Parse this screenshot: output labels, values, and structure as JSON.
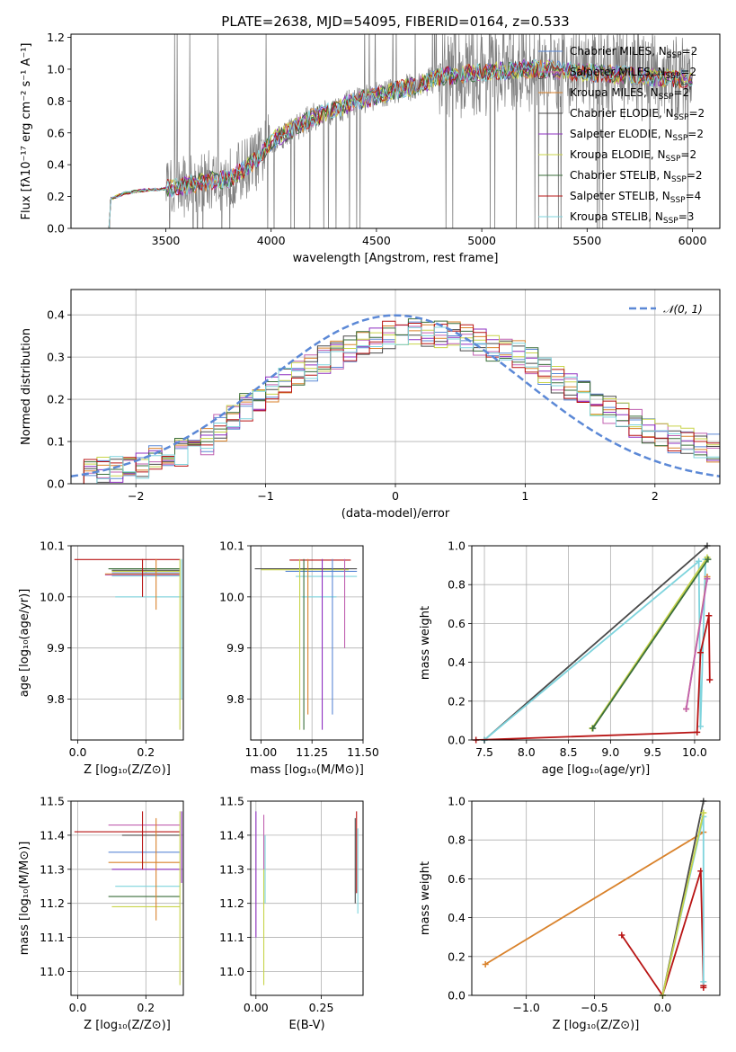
{
  "figure": {
    "title": "PLATE=2638, MJD=54095, FIBERID=0164, z=0.533"
  },
  "colors": {
    "Chabrier MILES": "#5b88d6",
    "Salpeter MILES": "#c060b0",
    "Kroupa MILES": "#d9822b",
    "Chabrier ELODIE": "#4a4a4a",
    "Salpeter ELODIE": "#8e2fc0",
    "Kroupa ELODIE": "#c8d44a",
    "Chabrier STELIB": "#3a6e3a",
    "Salpeter STELIB": "#b81414",
    "Kroupa STELIB": "#7fd4dd",
    "data": "#808080",
    "normal": "#5b88d6",
    "pink": "#e88aa0"
  },
  "chart_data": [
    {
      "id": "spectrum",
      "type": "line",
      "title": "PLATE=2638, MJD=54095, FIBERID=0164, z=0.533",
      "xlabel": "wavelength [Angstrom, rest frame]",
      "ylabel": "Flux [fλ10⁻¹⁷ erg cm⁻² s⁻¹ A⁻¹]",
      "xlim": [
        3050,
        6130
      ],
      "ylim": [
        0,
        1.22
      ],
      "xticks": [
        3500,
        4000,
        4500,
        5000,
        5500,
        6000
      ],
      "yticks": [
        0.0,
        0.2,
        0.4,
        0.6,
        0.8,
        1.0,
        1.2
      ],
      "grid": false,
      "legend_position": "top-right",
      "continuum": {
        "x": [
          3230,
          3300,
          3400,
          3500,
          3600,
          3700,
          3800,
          3900,
          3950,
          4000,
          4100,
          4200,
          4300,
          4400,
          4500,
          4600,
          4700,
          4800,
          4900,
          5000,
          5100,
          5200,
          5300,
          5400,
          5500,
          5600,
          5700,
          5800,
          5900,
          6000
        ],
        "y": [
          0.18,
          0.22,
          0.24,
          0.25,
          0.27,
          0.3,
          0.31,
          0.4,
          0.45,
          0.55,
          0.62,
          0.7,
          0.74,
          0.8,
          0.83,
          0.87,
          0.9,
          0.95,
          0.97,
          0.98,
          0.99,
          1.0,
          1.0,
          0.99,
          0.98,
          0.97,
          0.96,
          0.95,
          0.94,
          0.93
        ]
      },
      "series": [
        {
          "name": "Chabrier MILES, N_SSP=2",
          "label": "Chabrier MILES, N",
          "n": "2"
        },
        {
          "name": "Salpeter MILES, N_SSP=2",
          "label": "Salpeter MILES, N",
          "n": "2"
        },
        {
          "name": "Kroupa MILES, N_SSP=2",
          "label": "Kroupa MILES, N",
          "n": "2"
        },
        {
          "name": "Chabrier ELODIE, N_SSP=2",
          "label": "Chabrier ELODIE, N",
          "n": "2"
        },
        {
          "name": "Salpeter ELODIE, N_SSP=2",
          "label": "Salpeter ELODIE, N",
          "n": "2"
        },
        {
          "name": "Kroupa ELODIE, N_SSP=2",
          "label": "Kroupa ELODIE, N",
          "n": "2"
        },
        {
          "name": "Chabrier STELIB, N_SSP=2",
          "label": "Chabrier STELIB, N",
          "n": "2"
        },
        {
          "name": "Salpeter STELIB, N_SSP=4",
          "label": "Salpeter STELIB, N",
          "n": "4"
        },
        {
          "name": "Kroupa STELIB, N_SSP=3",
          "label": "Kroupa STELIB, N",
          "n": "3"
        }
      ],
      "legend_subscript": "SSP"
    },
    {
      "id": "residuals",
      "type": "line",
      "xlabel": "(data-model)/error",
      "ylabel": "Normed distribution",
      "xlim": [
        -2.5,
        2.5
      ],
      "ylim": [
        0,
        0.46
      ],
      "xticks": [
        -2,
        -1,
        0,
        1,
        2
      ],
      "yticks": [
        0.0,
        0.1,
        0.2,
        0.3,
        0.4
      ],
      "grid": true,
      "legend_position": "top-right",
      "legend_label": "𝒩(0, 1)",
      "normal_curve": {
        "name": "N(0,1)",
        "mean": 0,
        "sigma": 1
      },
      "hist_envelope": {
        "x": [
          -2.5,
          -2.0,
          -1.5,
          -1.0,
          -0.5,
          0.0,
          0.5,
          1.0,
          1.5,
          2.0,
          2.5
        ],
        "y": [
          0.02,
          0.04,
          0.09,
          0.22,
          0.3,
          0.36,
          0.35,
          0.3,
          0.2,
          0.12,
          0.08
        ]
      }
    },
    {
      "id": "age-vs-Z",
      "type": "scatter",
      "xlabel": "Z [log₁₀(Z/Z⊙)]",
      "ylabel": "age  [log₁₀(age/yr)]",
      "xlim": [
        -0.02,
        0.31
      ],
      "ylim": [
        9.72,
        10.1
      ],
      "xticks": [
        0.0,
        0.2
      ],
      "yticks": [
        9.8,
        9.9,
        10.0,
        10.1
      ],
      "grid": true,
      "points": [
        {
          "series": "Salpeter STELIB",
          "x": 0.3,
          "y": 10.074,
          "xerr_lo": 0.3,
          "yerr_lo": 0.0,
          "yerr_hi": 0.0
        },
        {
          "series": "Chabrier STELIB",
          "x": 0.3,
          "y": 10.052,
          "xerr_lo": 0.21,
          "yerr_lo": 0.0
        },
        {
          "series": "Chabrier ELODIE",
          "x": 0.3,
          "y": 10.055,
          "xerr_lo": 0.2
        },
        {
          "series": "Kroupa ELODIE",
          "x": 0.3,
          "y": 10.05,
          "xerr_lo": 0.19
        },
        {
          "series": "Chabrier MILES",
          "x": 0.3,
          "y": 10.047,
          "xerr_lo": 0.2
        },
        {
          "series": "Kroupa MILES",
          "x": 0.3,
          "y": 10.045,
          "xerr_lo": 0.2
        },
        {
          "series": "Salpeter MILES",
          "x": 0.3,
          "y": 10.044,
          "xerr_lo": 0.2
        },
        {
          "series": "Kroupa STELIB",
          "x": 0.3,
          "y": 10.042,
          "xerr_lo": 0.2
        },
        {
          "series": "Kroupa STELIB",
          "x": 0.2,
          "y": 10.0,
          "xerr_lo": 0.09
        }
      ]
    },
    {
      "id": "age-vs-mass",
      "type": "scatter",
      "xlabel": "mass [log₁₀(M/M⊙)]",
      "xlim": [
        10.95,
        11.5
      ],
      "ylim": [
        9.72,
        10.1
      ],
      "xticks": [
        11.0,
        11.25,
        11.5
      ],
      "yticks": [
        9.8,
        9.9,
        10.0,
        10.1
      ],
      "grid": true
    },
    {
      "id": "weight-vs-age",
      "type": "line",
      "xlabel": "age  [log₁₀(age/yr)]",
      "ylabel": "mass weight",
      "xlim": [
        7.35,
        10.3
      ],
      "ylim": [
        0.0,
        1.0
      ],
      "xticks": [
        7.5,
        8.0,
        8.5,
        9.0,
        9.5,
        10.0
      ],
      "yticks": [
        0.0,
        0.2,
        0.4,
        0.6,
        0.8,
        1.0
      ],
      "grid": true,
      "series": [
        {
          "name": "Chabrier ELODIE",
          "x": [
            7.5,
            10.15
          ],
          "y": [
            0.0,
            1.0
          ]
        },
        {
          "name": "Kroupa STELIB",
          "x": [
            7.5,
            10.05,
            10.07,
            10.13
          ],
          "y": [
            0.0,
            0.92,
            0.07,
            0.93
          ]
        },
        {
          "name": "Kroupa ELODIE",
          "x": [
            8.78,
            10.15
          ],
          "y": [
            0.06,
            0.94
          ]
        },
        {
          "name": "Chabrier STELIB",
          "x": [
            8.79,
            10.16
          ],
          "y": [
            0.06,
            0.93
          ]
        },
        {
          "name": "Kroupa MILES",
          "x": [
            9.9,
            10.15
          ],
          "y": [
            0.16,
            0.84
          ]
        },
        {
          "name": "Salpeter MILES",
          "x": [
            9.9,
            10.15
          ],
          "y": [
            0.16,
            0.83
          ]
        },
        {
          "name": "Salpeter STELIB",
          "x": [
            7.4,
            10.03,
            10.07,
            10.17,
            10.18
          ],
          "y": [
            0.0,
            0.04,
            0.45,
            0.64,
            0.31
          ]
        }
      ]
    },
    {
      "id": "mass-vs-Z",
      "type": "scatter",
      "xlabel": "Z [log₁₀(Z/Z⊙)]",
      "ylabel": "mass [log₁₀(M/M⊙)]",
      "xlim": [
        -0.02,
        0.31
      ],
      "ylim": [
        10.93,
        11.5
      ],
      "xticks": [
        0.0,
        0.2
      ],
      "yticks": [
        11.0,
        11.1,
        11.2,
        11.3,
        11.4,
        11.5
      ],
      "grid": true
    },
    {
      "id": "mass-vs-EBV",
      "type": "scatter",
      "xlabel": "E(B-V)",
      "xlim": [
        -0.02,
        0.41
      ],
      "ylim": [
        10.93,
        11.5
      ],
      "xticks": [
        0.0,
        0.25
      ],
      "yticks": [
        11.0,
        11.1,
        11.2,
        11.3,
        11.4,
        11.5
      ],
      "grid": true
    },
    {
      "id": "weight-vs-Z",
      "type": "line",
      "xlabel": "Z [log₁₀(Z/Z⊙)]",
      "ylabel": "mass weight",
      "xlim": [
        -1.4,
        0.42
      ],
      "ylim": [
        0.0,
        1.0
      ],
      "xticks": [
        -1.0,
        -0.5,
        0.0
      ],
      "yticks": [
        0.0,
        0.2,
        0.4,
        0.6,
        0.8,
        1.0
      ],
      "grid": true,
      "series": [
        {
          "name": "Kroupa MILES",
          "x": [
            -1.3,
            0.3
          ],
          "y": [
            0.16,
            0.84
          ]
        },
        {
          "name": "Salpeter STELIB",
          "x": [
            -0.3,
            0.0,
            0.28,
            0.3,
            0.3
          ],
          "y": [
            0.31,
            0.0,
            0.64,
            0.05,
            0.04
          ]
        },
        {
          "name": "Chabrier ELODIE",
          "x": [
            0.0,
            0.3
          ],
          "y": [
            0.0,
            1.0
          ]
        },
        {
          "name": "Kroupa STELIB",
          "x": [
            0.0,
            0.3,
            0.3
          ],
          "y": [
            0.0,
            0.92,
            0.07
          ]
        },
        {
          "name": "Kroupa ELODIE",
          "x": [
            0.0,
            0.3
          ],
          "y": [
            0.0,
            0.94
          ]
        }
      ]
    }
  ]
}
